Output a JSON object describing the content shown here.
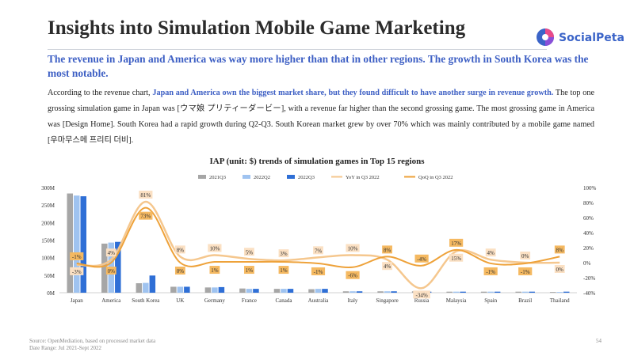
{
  "header": {
    "title": "Insights into Simulation Mobile Game Marketing",
    "logo_text": "SocialPeta"
  },
  "headline": "The revenue in Japan and America was way more higher than that in other regions. The growth in South Korea was the most notable.",
  "body": {
    "p1": "According to the revenue chart, ",
    "p2": "Japan and America own the biggest market share, but they found difficult to have another surge in revenue growth.",
    "p3": " The top one grossing simulation game in Japan was [ウマ娘 プリティーダービー], with a revenue far higher than the second grossing game. The most grossing game in America was [Design Home]. South Korea had a rapid growth during Q2-Q3. South Korean market grew by over 70% which was mainly contributed by a mobile game named [우마무스메 프리티 더비]."
  },
  "chart_data": {
    "type": "bar",
    "title": "IAP (unit: $) trends of simulation games in Top 15 regions",
    "categories": [
      "Japan",
      "America",
      "South Korea",
      "UK",
      "Germany",
      "France",
      "Canada",
      "Australia",
      "Italy",
      "Singapore",
      "Russia",
      "Malaysia",
      "Spain",
      "Brazil",
      "Thailand"
    ],
    "series": [
      {
        "name": "2021Q3",
        "kind": "bar",
        "axis": "left",
        "color": "#a6a6a6",
        "values": [
          283,
          140,
          27,
          17,
          15,
          12,
          11,
          10,
          4,
          4,
          4,
          3,
          3,
          3,
          2
        ]
      },
      {
        "name": "2022Q2",
        "kind": "bar",
        "axis": "left",
        "color": "#9fc3f0",
        "values": [
          277,
          143,
          28,
          17,
          15,
          11,
          11,
          11,
          4,
          4,
          4,
          3,
          3,
          3,
          2
        ]
      },
      {
        "name": "2022Q3",
        "kind": "bar",
        "axis": "left",
        "color": "#2f6fd6",
        "values": [
          275,
          145,
          49,
          17,
          16,
          11,
          11,
          11,
          4,
          4,
          3,
          3,
          3,
          3,
          3
        ]
      },
      {
        "name": "YoY in Q3 2022",
        "kind": "line",
        "axis": "right",
        "color": "#f5c78e",
        "values": [
          -3,
          4,
          81,
          8,
          10,
          5,
          3,
          7,
          10,
          4,
          -34,
          15,
          4,
          0,
          0
        ]
      },
      {
        "name": "QoQ in Q3 2022",
        "kind": "line",
        "axis": "right",
        "color": "#eea23a",
        "values": [
          -1,
          0,
          73,
          0,
          1,
          1,
          1,
          -1,
          -6,
          8,
          -4,
          17,
          -1,
          -1,
          8
        ]
      }
    ],
    "labels_yoy": [
      "-3%",
      "4%",
      "81%",
      "8%",
      "10%",
      "5%",
      "3%",
      "7%",
      "10%",
      "4%",
      "-34%",
      "15%",
      "4%",
      "0%",
      "0%"
    ],
    "labels_qoq": [
      "-1%",
      "0%",
      "73%",
      "0%",
      "1%",
      "1%",
      "1%",
      "-1%",
      "-6%",
      "8%",
      "-4%",
      "17%",
      "-1%",
      "-1%",
      "8%"
    ],
    "y_left": {
      "ylim": [
        0,
        300
      ],
      "ticks": [
        "0M",
        "50M",
        "100M",
        "150M",
        "200M",
        "250M",
        "300M"
      ]
    },
    "y_right": {
      "ylim": [
        -40,
        100
      ],
      "ticks": [
        "-40%",
        "-20%",
        "0%",
        "20%",
        "40%",
        "60%",
        "80%",
        "100%"
      ]
    },
    "grid": false,
    "legend": "top"
  },
  "footer": {
    "source": "Source: OpenMediation, based on processed market data",
    "range": "Date Range: Jul 2021-Sept 2022",
    "page": "54"
  },
  "colors": {
    "accent": "#3d5fc4"
  }
}
